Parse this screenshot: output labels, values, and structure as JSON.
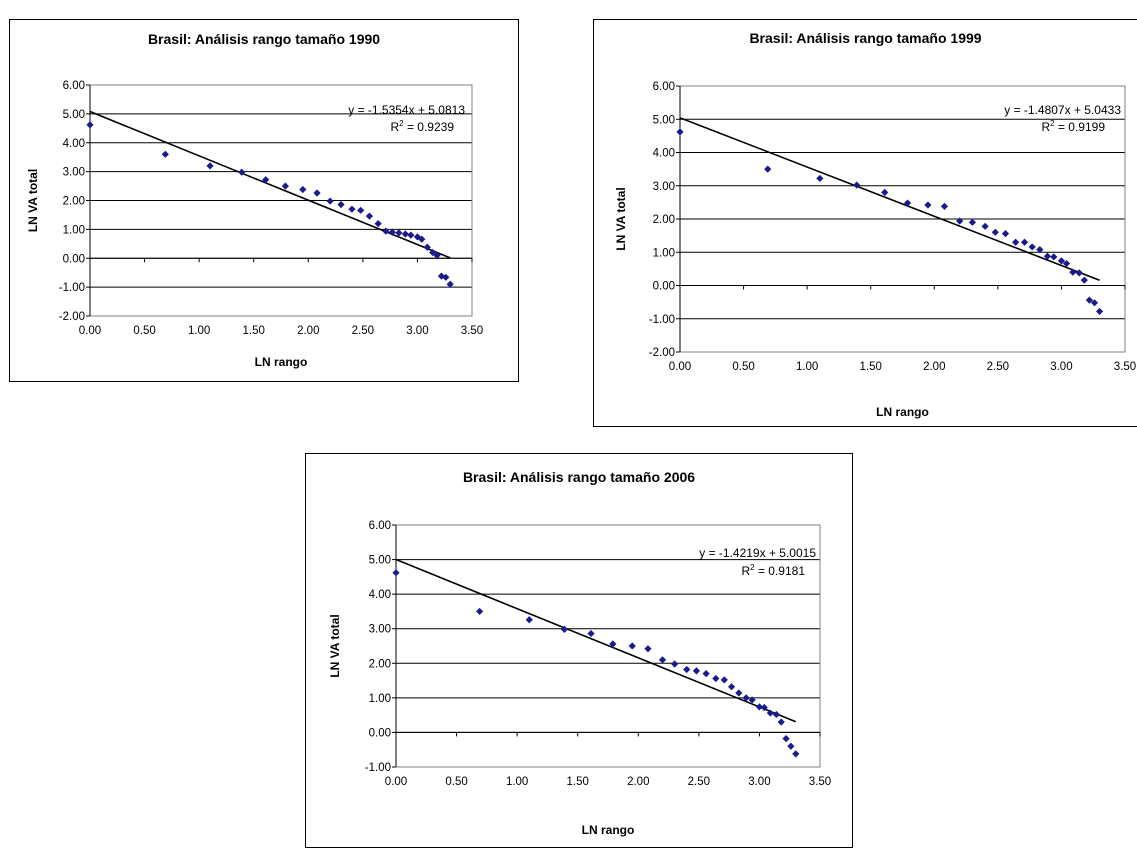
{
  "colors": {
    "marker": "#1a1a8c",
    "gridline": "#000000",
    "trendline": "#000000"
  },
  "chart_data": [
    {
      "type": "scatter",
      "title": "Brasil: Análisis rango tamaño 1990",
      "xlabel": "LN rango",
      "ylabel": "LN VA total",
      "xlim": [
        0,
        3.5
      ],
      "ylim": [
        -2,
        6
      ],
      "xticks": [
        "0.00",
        "0.50",
        "1.00",
        "1.50",
        "2.00",
        "2.50",
        "3.00",
        "3.50"
      ],
      "yticks": [
        "6.00",
        "5.00",
        "4.00",
        "3.00",
        "2.00",
        "1.00",
        "0.00",
        "-1.00",
        "-2.00"
      ],
      "grid": "horizontal",
      "trendline": {
        "slope": -1.5354,
        "intercept": 5.0813,
        "equation": "y = -1.5354x + 5.0813",
        "r2_prefix": "R",
        "r2_sup": "2",
        "r2_value": " = 0.9239"
      },
      "x": [
        0.0,
        0.69,
        1.1,
        1.39,
        1.61,
        1.79,
        1.95,
        2.08,
        2.2,
        2.3,
        2.4,
        2.48,
        2.56,
        2.64,
        2.71,
        2.77,
        2.83,
        2.89,
        2.94,
        3.0,
        3.04,
        3.09,
        3.14,
        3.18,
        3.22,
        3.26,
        3.3
      ],
      "y": [
        4.62,
        3.6,
        3.2,
        2.98,
        2.72,
        2.5,
        2.38,
        2.26,
        1.98,
        1.86,
        1.7,
        1.66,
        1.46,
        1.2,
        0.94,
        0.9,
        0.88,
        0.84,
        0.8,
        0.74,
        0.66,
        0.38,
        0.2,
        0.1,
        -0.62,
        -0.66,
        -0.9
      ]
    },
    {
      "type": "scatter",
      "title": "Brasil: Análisis rango tamaño 1999",
      "xlabel": "LN rango",
      "ylabel": "LN VA total",
      "xlim": [
        0,
        3.5
      ],
      "ylim": [
        -2,
        6
      ],
      "xticks": [
        "0.00",
        "0.50",
        "1.00",
        "1.50",
        "2.00",
        "2.50",
        "3.00",
        "3.50"
      ],
      "yticks": [
        "6.00",
        "5.00",
        "4.00",
        "3.00",
        "2.00",
        "1.00",
        "0.00",
        "-1.00",
        "-2.00"
      ],
      "grid": "horizontal",
      "trendline": {
        "slope": -1.4807,
        "intercept": 5.0433,
        "equation": "y = -1.4807x + 5.0433",
        "r2_prefix": "R",
        "r2_sup": "2",
        "r2_value": " = 0.9199"
      },
      "x": [
        0.0,
        0.69,
        1.1,
        1.39,
        1.61,
        1.79,
        1.95,
        2.08,
        2.2,
        2.3,
        2.4,
        2.48,
        2.56,
        2.64,
        2.71,
        2.77,
        2.83,
        2.89,
        2.94,
        3.0,
        3.04,
        3.09,
        3.14,
        3.18,
        3.22,
        3.26,
        3.3
      ],
      "y": [
        4.62,
        3.5,
        3.22,
        3.02,
        2.8,
        2.48,
        2.42,
        2.38,
        1.94,
        1.9,
        1.78,
        1.6,
        1.56,
        1.3,
        1.3,
        1.16,
        1.08,
        0.88,
        0.86,
        0.74,
        0.66,
        0.4,
        0.38,
        0.16,
        -0.44,
        -0.52,
        -0.78
      ]
    },
    {
      "type": "scatter",
      "title": "Brasil: Análisis rango tamaño 2006",
      "xlabel": "LN rango",
      "ylabel": "LN VA total",
      "xlim": [
        0,
        3.5
      ],
      "ylim": [
        -1,
        6
      ],
      "xticks": [
        "0.00",
        "0.50",
        "1.00",
        "1.50",
        "2.00",
        "2.50",
        "3.00",
        "3.50"
      ],
      "yticks": [
        "6.00",
        "5.00",
        "4.00",
        "3.00",
        "2.00",
        "1.00",
        "0.00",
        "-1.00"
      ],
      "grid": "horizontal",
      "trendline": {
        "slope": -1.4219,
        "intercept": 5.0015,
        "equation": "y = -1.4219x + 5.0015",
        "r2_prefix": "R",
        "r2_sup": "2",
        "r2_value": " = 0.9181"
      },
      "x": [
        0.0,
        0.69,
        1.1,
        1.39,
        1.61,
        1.79,
        1.95,
        2.08,
        2.2,
        2.3,
        2.4,
        2.48,
        2.56,
        2.64,
        2.71,
        2.77,
        2.83,
        2.89,
        2.94,
        3.0,
        3.04,
        3.09,
        3.14,
        3.18,
        3.22,
        3.26,
        3.3
      ],
      "y": [
        4.62,
        3.5,
        3.26,
        2.98,
        2.86,
        2.56,
        2.5,
        2.42,
        2.1,
        1.98,
        1.82,
        1.78,
        1.7,
        1.56,
        1.52,
        1.32,
        1.14,
        1.0,
        0.94,
        0.74,
        0.72,
        0.56,
        0.52,
        0.3,
        -0.18,
        -0.4,
        -0.62
      ]
    }
  ]
}
